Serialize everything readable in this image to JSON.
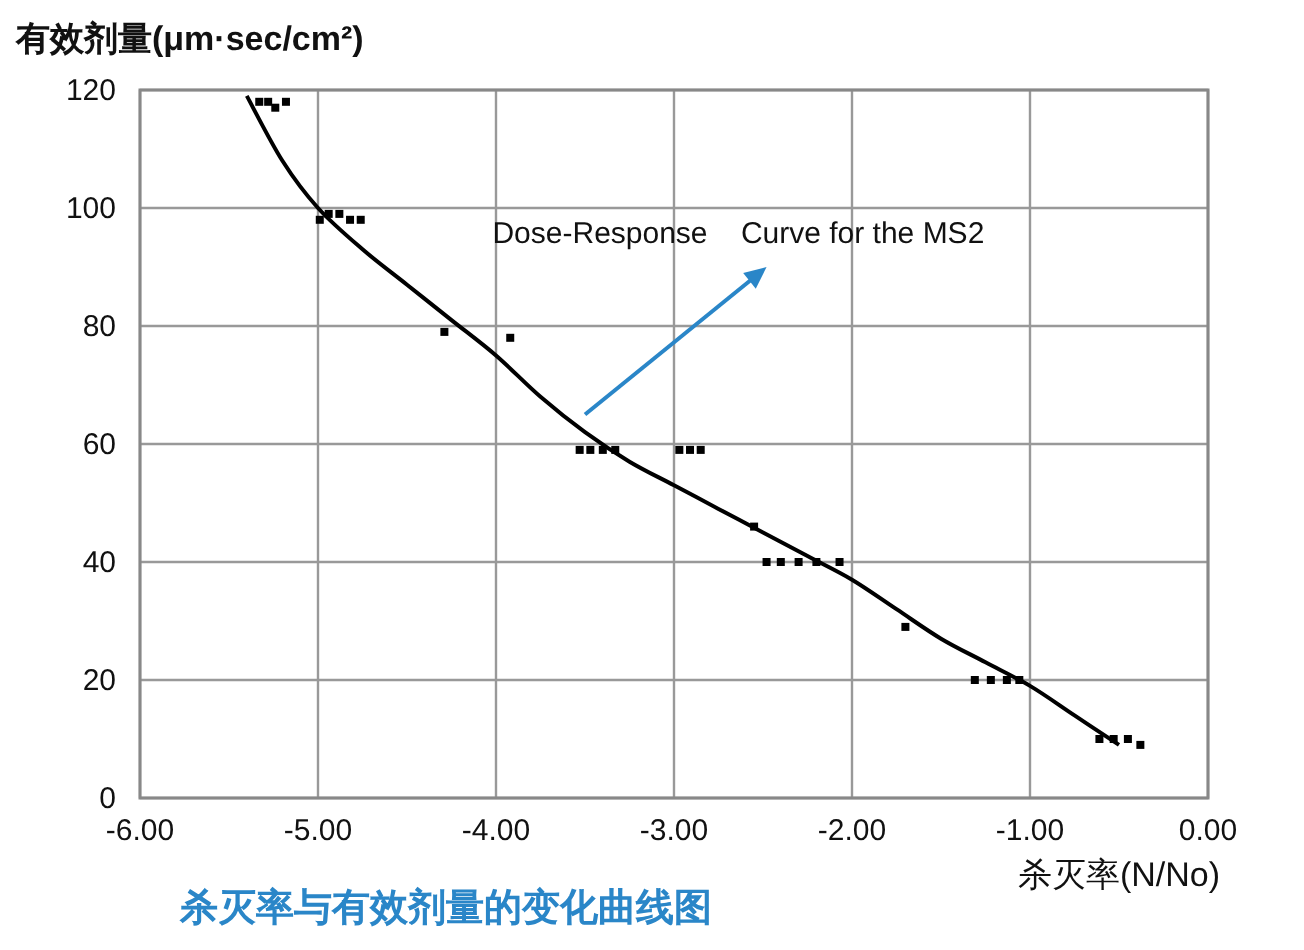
{
  "chart_data": {
    "type": "scatter",
    "title": "杀灭率与有效剂量的变化曲线图",
    "xlabel": "杀灭率(N/No)",
    "ylabel": "有效剂量(μm·sec/cm²)",
    "xlim": [
      -6,
      0
    ],
    "ylim": [
      0,
      120
    ],
    "xticks": [
      {
        "value": -6,
        "label": "-6.00"
      },
      {
        "value": -5,
        "label": "-5.00"
      },
      {
        "value": -4,
        "label": "-4.00"
      },
      {
        "value": -3,
        "label": "-3.00"
      },
      {
        "value": -2,
        "label": "-2.00"
      },
      {
        "value": -1,
        "label": "-1.00"
      },
      {
        "value": 0,
        "label": "0.00"
      }
    ],
    "yticks": [
      0,
      20,
      40,
      60,
      80,
      100,
      120
    ],
    "grid": true,
    "annotations": [
      "Dose-Response    Curve for the MS2"
    ],
    "series": [
      {
        "color": "#000000",
        "marker": "square",
        "x": [
          -5.33,
          -5.28,
          -5.24,
          -5.18,
          -4.99,
          -4.94,
          -4.88,
          -4.82,
          -4.76,
          -4.29,
          -3.92,
          -3.53,
          -3.47,
          -3.4,
          -3.33,
          -2.97,
          -2.91,
          -2.85,
          -2.55,
          -2.48,
          -2.4,
          -2.3,
          -2.2,
          -2.07,
          -1.7,
          -1.31,
          -1.22,
          -1.13,
          -1.06,
          -0.61,
          -0.53,
          -0.45,
          -0.38
        ],
        "values": [
          118,
          118,
          117,
          118,
          98,
          99,
          99,
          98,
          98,
          79,
          78,
          59,
          59,
          59,
          59,
          59,
          59,
          59,
          46,
          40,
          40,
          40,
          40,
          40,
          29,
          20,
          20,
          20,
          20,
          10,
          10,
          10,
          9
        ]
      },
      {
        "type": "line",
        "color": "#000000",
        "x": [
          -5.4,
          -5.2,
          -5.0,
          -4.75,
          -4.5,
          -4.25,
          -4.0,
          -3.75,
          -3.5,
          -3.25,
          -3.0,
          -2.75,
          -2.5,
          -2.25,
          -2.0,
          -1.75,
          -1.5,
          -1.25,
          -1.0,
          -0.75,
          -0.5
        ],
        "values": [
          119,
          108,
          100,
          93,
          87,
          81,
          75,
          68,
          62,
          57,
          53,
          49,
          45,
          41,
          37,
          32,
          27,
          23,
          19,
          14,
          9
        ]
      }
    ]
  }
}
